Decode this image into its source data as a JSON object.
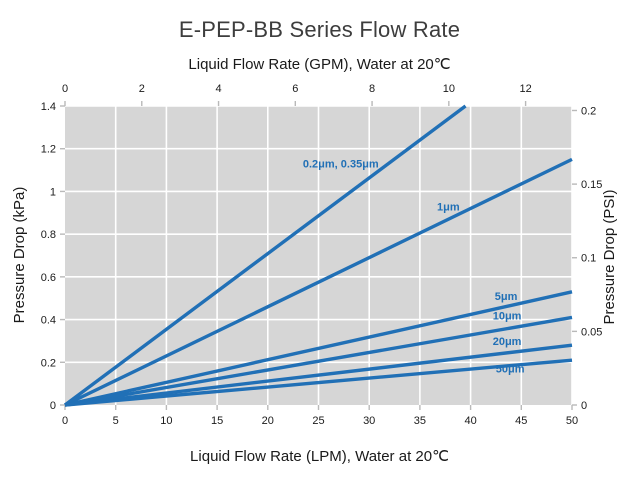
{
  "chart_data": {
    "type": "line",
    "title": "E-PEP-BB Series Flow Rate",
    "axes": {
      "top": {
        "label": "Liquid Flow Rate (GPM), Water at 20℃",
        "ticks": [
          0,
          2,
          4,
          6,
          8,
          10,
          12
        ],
        "lpm_per_gpm": 3.78541
      },
      "bottom": {
        "label": "Liquid Flow Rate (LPM), Water at 20℃",
        "min": 0,
        "max": 50,
        "ticks": [
          0,
          5,
          10,
          15,
          20,
          25,
          30,
          35,
          40,
          45,
          50
        ]
      },
      "left": {
        "label": "Pressure Drop (kPa)",
        "min": 0,
        "max": 1.4,
        "ticks": [
          0,
          0.2,
          0.4,
          0.6,
          0.8,
          1,
          1.2,
          1.4
        ]
      },
      "right": {
        "label": "Pressure Drop (PSI)",
        "ticks": [
          0,
          0.05,
          0.1,
          0.15,
          0.2
        ],
        "kpa_per_psi": 6.89476
      }
    },
    "grid": {
      "show": true,
      "color": "#ffffff"
    },
    "series": [
      {
        "name": "0.2um-0.35um",
        "label": "0.2μm, 0.35μm",
        "points_lpm_kpa": [
          [
            0,
            0
          ],
          [
            39.5,
            1.4
          ]
        ],
        "label_anchor_lpm_kpa": [
          27.2,
          1.13
        ]
      },
      {
        "name": "1um",
        "label": "1μm",
        "points_lpm_kpa": [
          [
            0,
            0
          ],
          [
            50,
            1.15
          ]
        ],
        "label_anchor_lpm_kpa": [
          37.8,
          0.93
        ]
      },
      {
        "name": "5um",
        "label": "5μm",
        "points_lpm_kpa": [
          [
            0,
            0
          ],
          [
            50,
            0.53
          ]
        ],
        "label_anchor_lpm_kpa": [
          43.5,
          0.51
        ]
      },
      {
        "name": "10um",
        "label": "10μm",
        "points_lpm_kpa": [
          [
            0,
            0
          ],
          [
            50,
            0.41
          ]
        ],
        "label_anchor_lpm_kpa": [
          43.6,
          0.42
        ]
      },
      {
        "name": "20um",
        "label": "20μm",
        "points_lpm_kpa": [
          [
            0,
            0
          ],
          [
            50,
            0.28
          ]
        ],
        "label_anchor_lpm_kpa": [
          43.6,
          0.3
        ]
      },
      {
        "name": "50um",
        "label": "50μm",
        "points_lpm_kpa": [
          [
            0,
            0
          ],
          [
            50,
            0.21
          ]
        ],
        "label_anchor_lpm_kpa": [
          43.9,
          0.17
        ]
      }
    ],
    "colors": {
      "line": "#2170b6",
      "series_label_text": "#2170b6",
      "plot_background": "#d6d6d6",
      "gridline": "#ffffff",
      "tick_mark": "#b9b9b9",
      "tick_label": "#1a1a1a",
      "title_text": "#3d3d3d"
    }
  }
}
